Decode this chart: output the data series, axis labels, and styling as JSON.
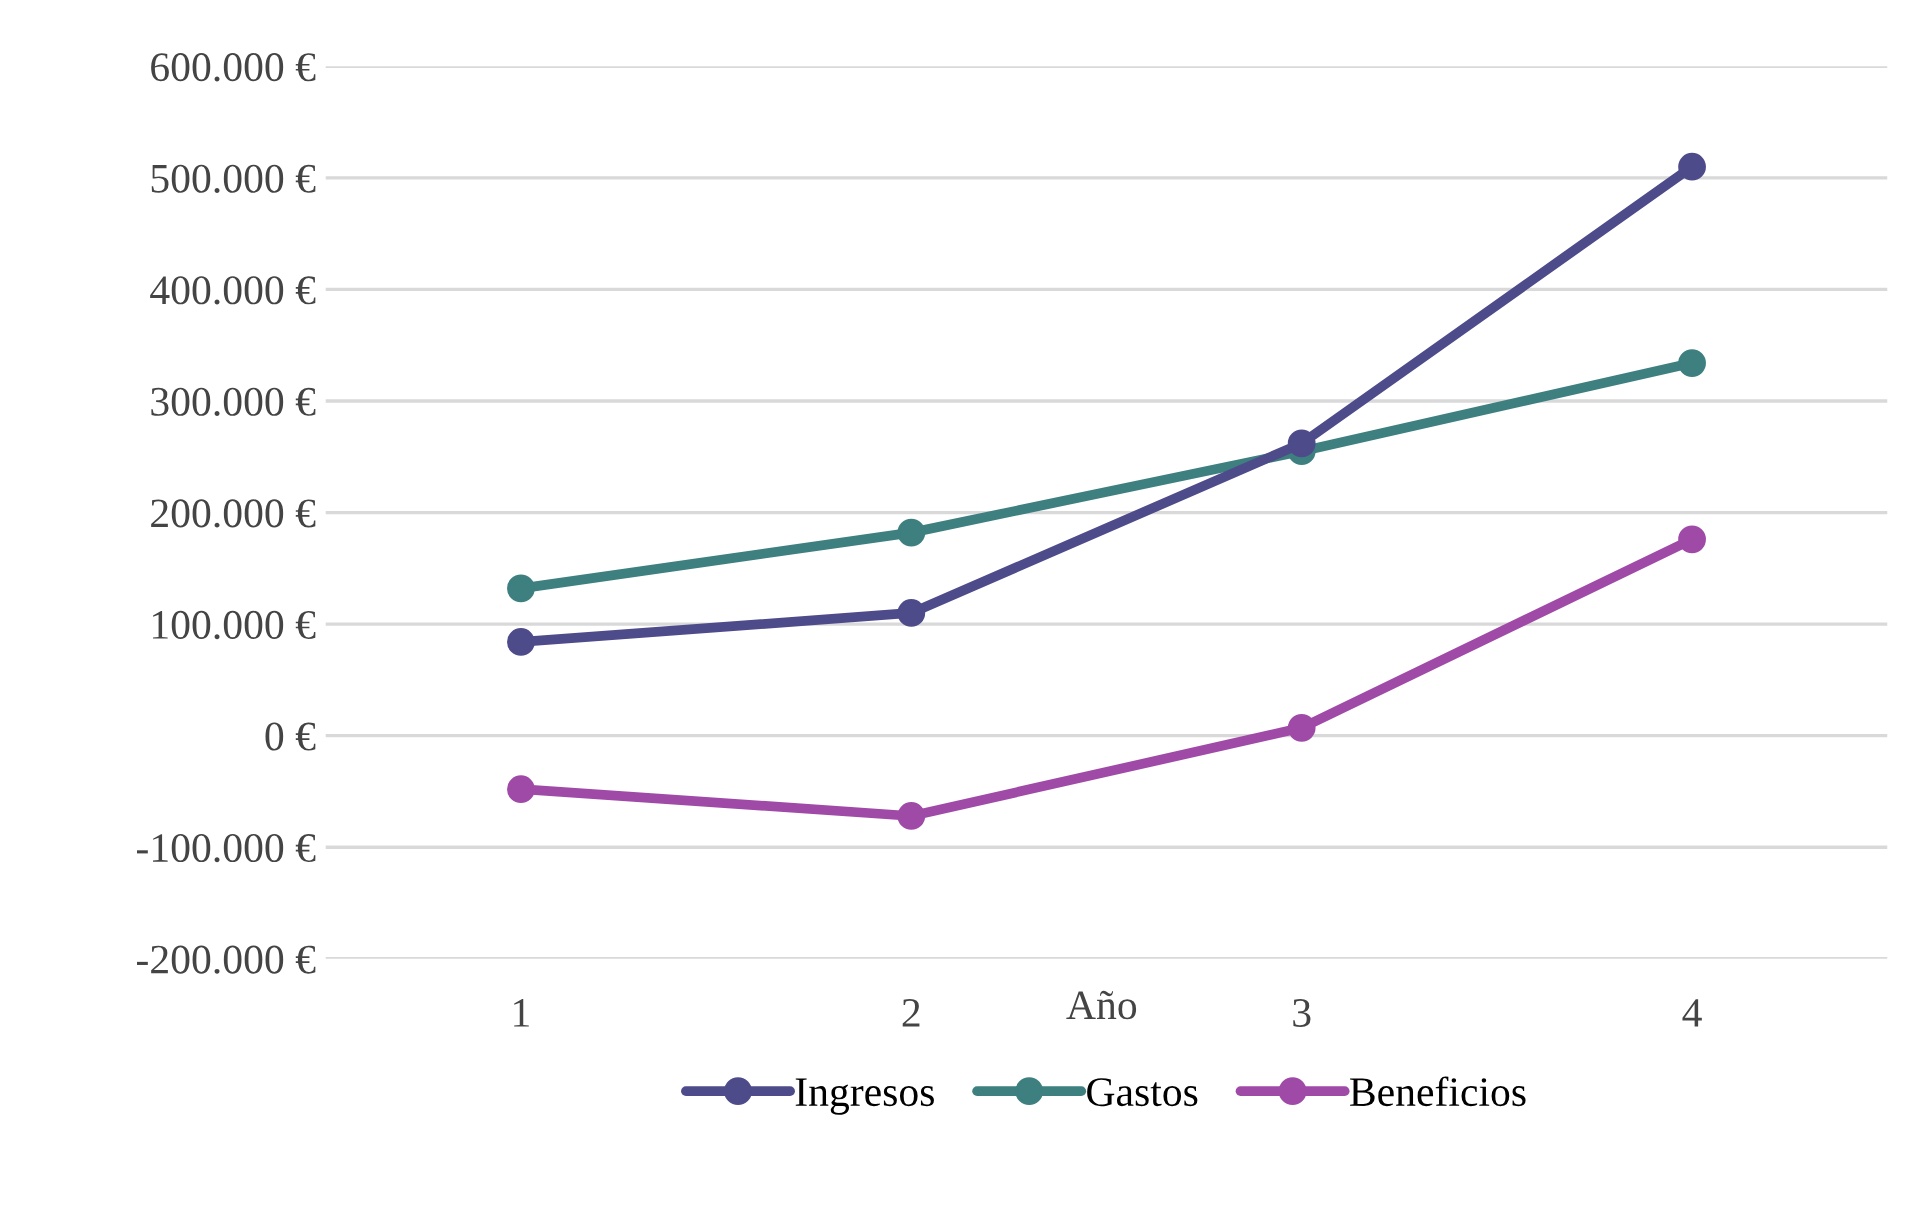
{
  "chart_data": {
    "type": "line",
    "xlabel": "Año",
    "categories": [
      "1",
      "2",
      "3",
      "4"
    ],
    "series": [
      {
        "name": "Ingresos",
        "color": "#4e4b8a",
        "values": [
          84000,
          110000,
          262000,
          510000
        ]
      },
      {
        "name": "Gastos",
        "color": "#3e7f80",
        "values": [
          132000,
          182000,
          255000,
          334000
        ]
      },
      {
        "name": "Beneficios",
        "color": "#a04aa8",
        "values": [
          -48000,
          -72000,
          7000,
          176000
        ]
      }
    ],
    "ylim": [
      -200000,
      600000
    ],
    "yticks": [
      {
        "value": -200000,
        "label": "-200.000 €"
      },
      {
        "value": -100000,
        "label": "-100.000 €"
      },
      {
        "value": 0,
        "label": "0 €"
      },
      {
        "value": 100000,
        "label": "100.000 €"
      },
      {
        "value": 200000,
        "label": "200.000 €"
      },
      {
        "value": 300000,
        "label": "300.000 €"
      },
      {
        "value": 400000,
        "label": "400.000 €"
      },
      {
        "value": 500000,
        "label": "500.000 €"
      },
      {
        "value": 600000,
        "label": "600.000 €"
      }
    ],
    "grid": "y",
    "legend": "bottom",
    "marker": "circle",
    "line_style": "solid"
  }
}
